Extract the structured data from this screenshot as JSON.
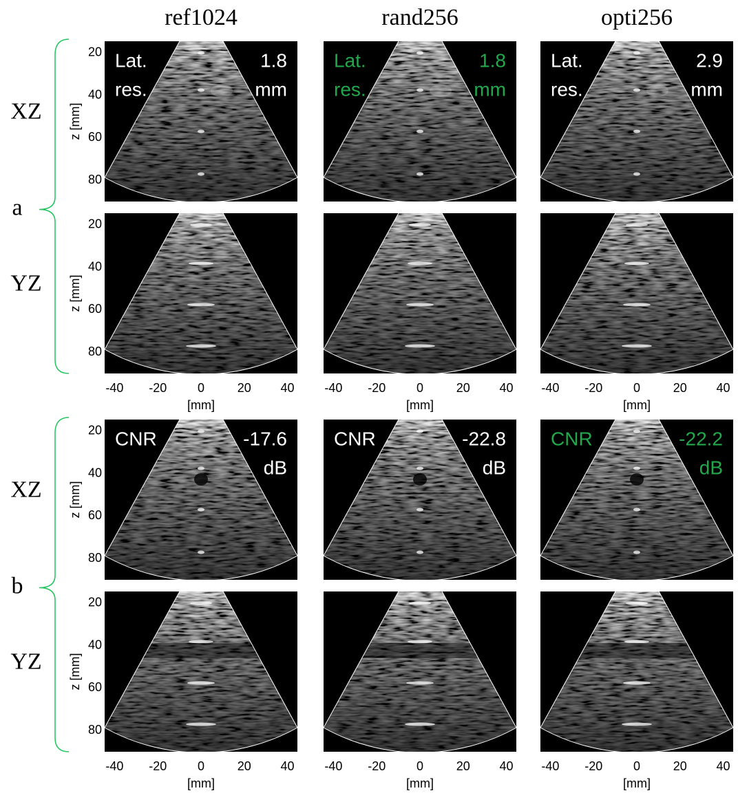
{
  "columns": [
    "ref1024",
    "rand256",
    "opti256"
  ],
  "groups": [
    {
      "label": "a",
      "rows": [
        {
          "label": "XZ",
          "annotations": [
            {
              "color": "#ffffff",
              "left": [
                "Lat.",
                "res."
              ],
              "right": [
                "1.8",
                "mm"
              ]
            },
            {
              "color": "#22a84a",
              "left": [
                "Lat.",
                "res."
              ],
              "right": [
                "1.8",
                "mm"
              ]
            },
            {
              "color": "#ffffff",
              "left": [
                "Lat.",
                "res."
              ],
              "right": [
                "2.9",
                "mm"
              ]
            }
          ]
        },
        {
          "label": "YZ"
        }
      ]
    },
    {
      "label": "b",
      "rows": [
        {
          "label": "XZ",
          "annotations": [
            {
              "color": "#ffffff",
              "left": [
                "CNR"
              ],
              "right": [
                "-17.6",
                "dB"
              ]
            },
            {
              "color": "#ffffff",
              "left": [
                "CNR"
              ],
              "right": [
                "-22.8",
                "dB"
              ]
            },
            {
              "color": "#22a84a",
              "left": [
                "CNR"
              ],
              "right": [
                "-22.2",
                "dB"
              ]
            }
          ]
        },
        {
          "label": "YZ"
        }
      ]
    }
  ],
  "axes": {
    "xlim": [
      -44.6,
      44.6
    ],
    "ylim": [
      14.5,
      90
    ],
    "xticks": [
      -40,
      -20,
      0,
      20,
      40
    ],
    "yticks": [
      20,
      40,
      60,
      80
    ],
    "xlabel": "[mm]",
    "ylabel": "z [mm]"
  }
}
